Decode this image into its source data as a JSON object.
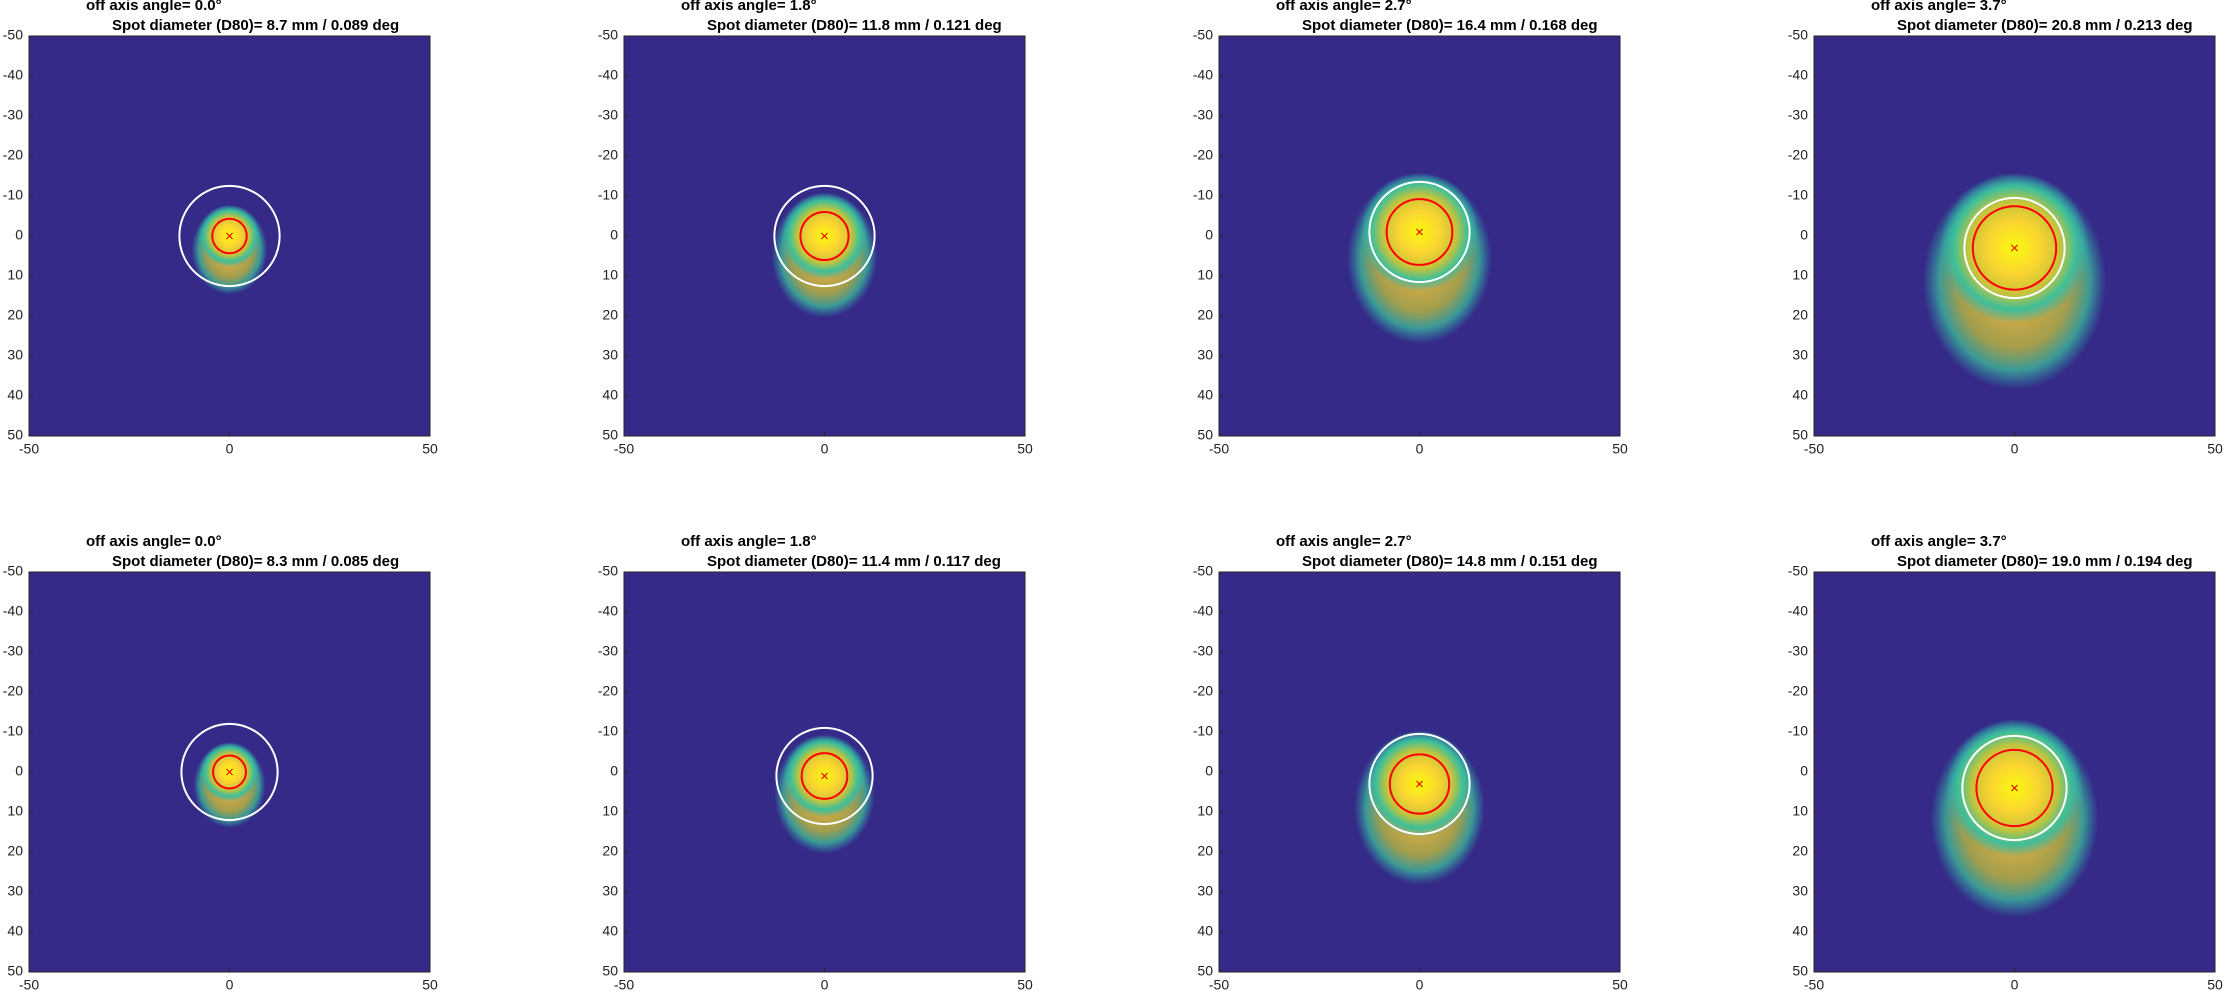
{
  "chart_data": [
    {
      "type": "heatmap",
      "title": "off axis angle= 0.0°",
      "subtitle": "Spot diameter (D80)= 8.7 mm / 0.089 deg",
      "xlim": [
        -50,
        50
      ],
      "ylim": [
        -50,
        50
      ],
      "y_reversed": true,
      "xticks": [
        -50,
        0,
        50
      ],
      "yticks": [
        -50,
        -40,
        -30,
        -20,
        -10,
        0,
        10,
        20,
        30,
        40,
        50
      ],
      "background": "#352a87",
      "centroid_x": 0,
      "centroid_y": 0,
      "circles": [
        {
          "color": "#ff0000",
          "radius": 4.3
        },
        {
          "color": "#ffffff",
          "radius": 12.5
        }
      ]
    },
    {
      "type": "heatmap",
      "title": "off axis angle= 1.8°",
      "subtitle": "Spot diameter (D80)= 11.8 mm / 0.121 deg",
      "xlim": [
        -50,
        50
      ],
      "ylim": [
        -50,
        50
      ],
      "y_reversed": true,
      "xticks": [
        -50,
        0,
        50
      ],
      "yticks": [
        -50,
        -40,
        -30,
        -20,
        -10,
        0,
        10,
        20,
        30,
        40,
        50
      ],
      "background": "#352a87",
      "centroid_x": 0,
      "centroid_y": 0,
      "circles": [
        {
          "color": "#ff0000",
          "radius": 6
        },
        {
          "color": "#ffffff",
          "radius": 12.5
        }
      ]
    },
    {
      "type": "heatmap",
      "title": "off axis angle= 2.7°",
      "subtitle": "Spot diameter (D80)= 16.4 mm / 0.168 deg",
      "xlim": [
        -50,
        50
      ],
      "ylim": [
        -50,
        50
      ],
      "y_reversed": true,
      "xticks": [
        -50,
        0,
        50
      ],
      "yticks": [
        -50,
        -40,
        -30,
        -20,
        -10,
        0,
        10,
        20,
        30,
        40,
        50
      ],
      "background": "#352a87",
      "centroid_x": 0,
      "centroid_y": -1,
      "circles": [
        {
          "color": "#ff0000",
          "radius": 8.2
        },
        {
          "color": "#ffffff",
          "radius": 12.5
        }
      ]
    },
    {
      "type": "heatmap",
      "title": "off axis angle= 3.7°",
      "subtitle": "Spot diameter (D80)= 20.8 mm / 0.213 deg",
      "xlim": [
        -50,
        50
      ],
      "ylim": [
        -50,
        50
      ],
      "y_reversed": true,
      "xticks": [
        -50,
        0,
        50
      ],
      "yticks": [
        -50,
        -40,
        -30,
        -20,
        -10,
        0,
        10,
        20,
        30,
        40,
        50
      ],
      "background": "#352a87",
      "centroid_x": 0,
      "centroid_y": 3,
      "circles": [
        {
          "color": "#ff0000",
          "radius": 10.4
        },
        {
          "color": "#ffffff",
          "radius": 12.5
        }
      ]
    },
    {
      "type": "heatmap",
      "title": "off axis angle= 0.0°",
      "subtitle": "Spot diameter (D80)= 8.3 mm / 0.085 deg",
      "xlim": [
        -50,
        50
      ],
      "ylim": [
        -50,
        50
      ],
      "y_reversed": true,
      "xticks": [
        -50,
        0,
        50
      ],
      "yticks": [
        -50,
        -40,
        -30,
        -20,
        -10,
        0,
        10,
        20,
        30,
        40,
        50
      ],
      "background": "#352a87",
      "centroid_x": 0,
      "centroid_y": 0,
      "circles": [
        {
          "color": "#ff0000",
          "radius": 4.1
        },
        {
          "color": "#ffffff",
          "radius": 12
        }
      ]
    },
    {
      "type": "heatmap",
      "title": "off axis angle= 1.8°",
      "subtitle": "Spot diameter (D80)= 11.4 mm / 0.117 deg",
      "xlim": [
        -50,
        50
      ],
      "ylim": [
        -50,
        50
      ],
      "y_reversed": true,
      "xticks": [
        -50,
        0,
        50
      ],
      "yticks": [
        -50,
        -40,
        -30,
        -20,
        -10,
        0,
        10,
        20,
        30,
        40,
        50
      ],
      "background": "#352a87",
      "centroid_x": 0,
      "centroid_y": 1,
      "circles": [
        {
          "color": "#ff0000",
          "radius": 5.7
        },
        {
          "color": "#ffffff",
          "radius": 12
        }
      ]
    },
    {
      "type": "heatmap",
      "title": "off axis angle= 2.7°",
      "subtitle": "Spot diameter (D80)= 14.8 mm / 0.151 deg",
      "xlim": [
        -50,
        50
      ],
      "ylim": [
        -50,
        50
      ],
      "y_reversed": true,
      "xticks": [
        -50,
        0,
        50
      ],
      "yticks": [
        -50,
        -40,
        -30,
        -20,
        -10,
        0,
        10,
        20,
        30,
        40,
        50
      ],
      "background": "#352a87",
      "centroid_x": 0,
      "centroid_y": 3,
      "circles": [
        {
          "color": "#ff0000",
          "radius": 7.4
        },
        {
          "color": "#ffffff",
          "radius": 12.5
        }
      ]
    },
    {
      "type": "heatmap",
      "title": "off axis angle= 3.7°",
      "subtitle": "Spot diameter (D80)= 19.0 mm / 0.194 deg",
      "xlim": [
        -50,
        50
      ],
      "ylim": [
        -50,
        50
      ],
      "y_reversed": true,
      "xticks": [
        -50,
        0,
        50
      ],
      "yticks": [
        -50,
        -40,
        -30,
        -20,
        -10,
        0,
        10,
        20,
        30,
        40,
        50
      ],
      "background": "#352a87",
      "centroid_x": 0,
      "centroid_y": 4,
      "circles": [
        {
          "color": "#ff0000",
          "radius": 9.5
        },
        {
          "color": "#ffffff",
          "radius": 13
        }
      ]
    }
  ]
}
